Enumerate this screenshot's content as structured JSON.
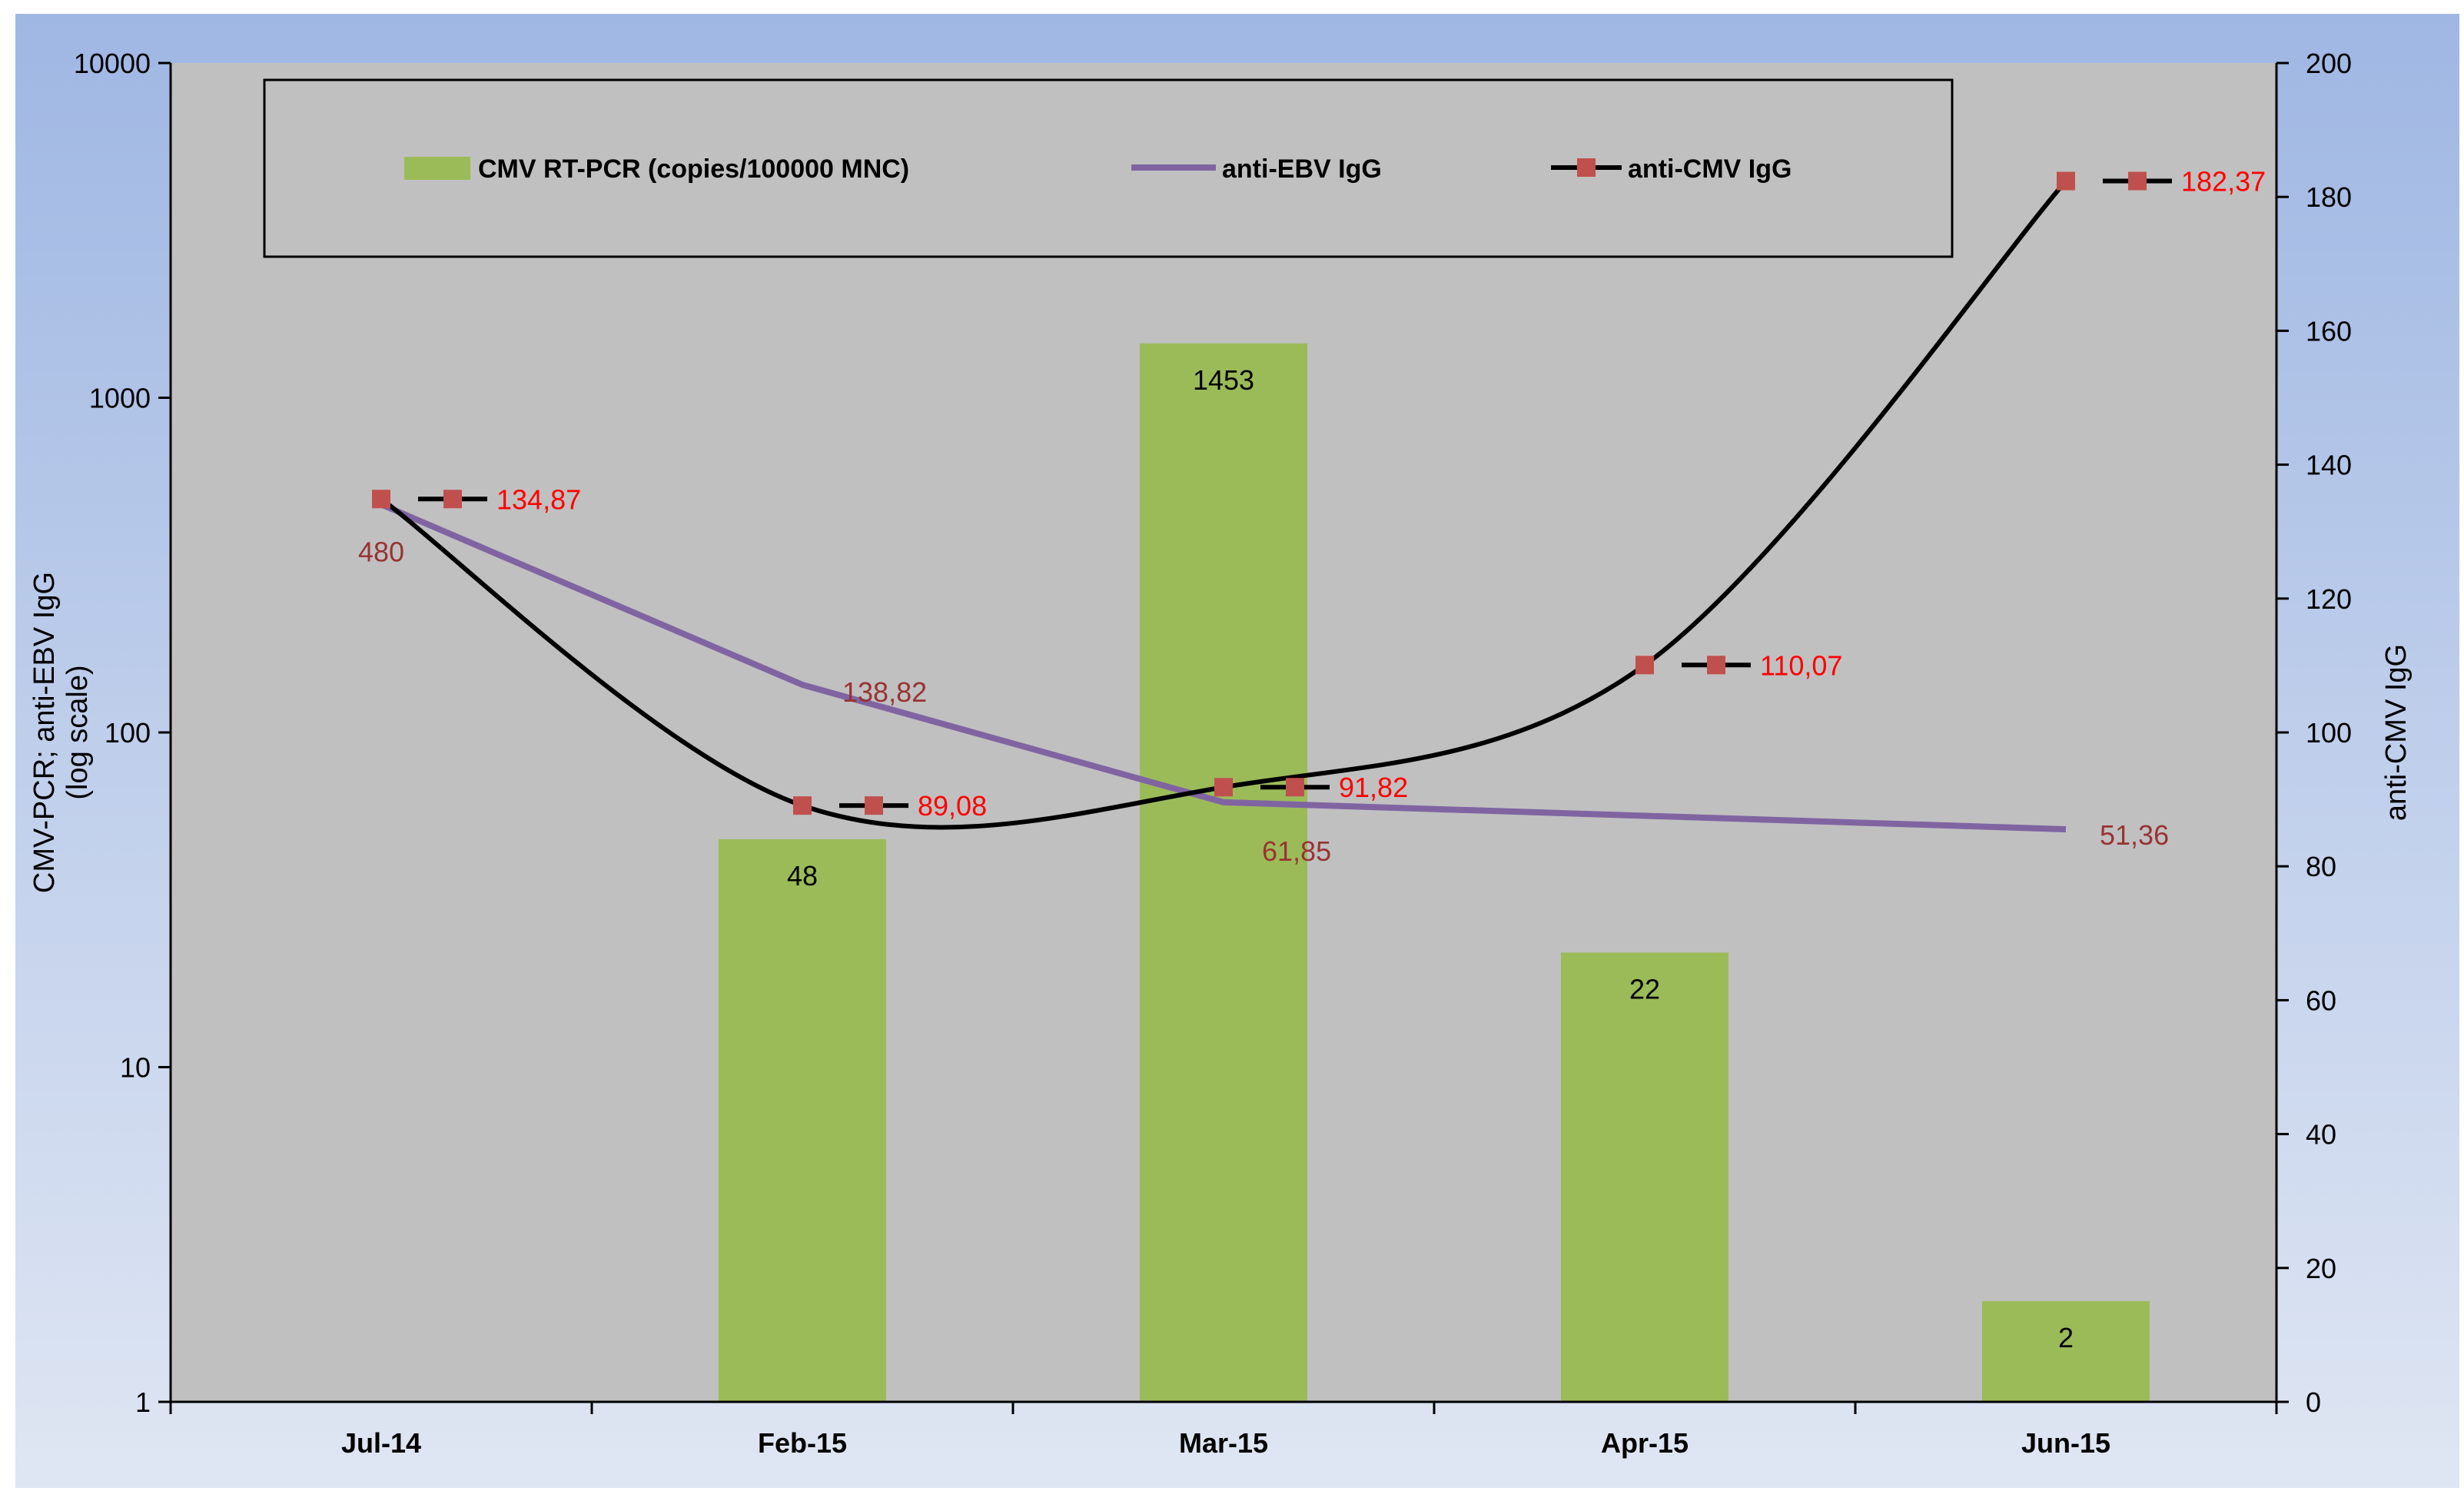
{
  "colors": {
    "frame_top": "#9fb7e3",
    "frame_bottom": "#dfe6f3",
    "plot_bg": "#c0c0c0",
    "bar": "#9bbb59",
    "ebv_line": "#8064a2",
    "cmv_line": "#000000",
    "cmv_marker": "#c0504d",
    "cmv_label": "#ff0000",
    "ebv_label": "#993333",
    "bar_label": "#000000"
  },
  "chart_data": {
    "type": "bar",
    "categories": [
      "Jul-14",
      "Feb-15",
      "Mar-15",
      "Apr-15",
      "Jun-15"
    ],
    "y_left": {
      "label_line1": "CMV-PCR;  anti-EBV IgG",
      "label_line2": "(log scale)",
      "scale": "log",
      "ylim": [
        1,
        10000
      ],
      "ticks": [
        1,
        10,
        100,
        1000,
        10000
      ],
      "tick_labels": [
        "1",
        "10",
        "100",
        "1000",
        "10000"
      ]
    },
    "y_right": {
      "label": "anti-CMV IgG",
      "scale": "linear",
      "ylim": [
        0,
        200
      ],
      "ticks": [
        0,
        20,
        40,
        60,
        80,
        100,
        120,
        140,
        160,
        180,
        200
      ],
      "tick_labels": [
        "0",
        "20",
        "40",
        "60",
        "80",
        "100",
        "120",
        "140",
        "160",
        "180",
        "200"
      ]
    },
    "legend": {
      "placement": "top",
      "entries": [
        "CMV RT-PCR (copies/100000  MNC)",
        "anti-EBV IgG",
        "anti-CMV IgG"
      ]
    },
    "series": [
      {
        "name": "CMV RT-PCR (copies/100000  MNC)",
        "kind": "bar",
        "axis": "left",
        "values": [
          null,
          48,
          1453,
          22,
          2
        ],
        "value_labels": [
          "",
          "48",
          "1453",
          "22",
          "2"
        ]
      },
      {
        "name": "anti-EBV IgG",
        "kind": "line",
        "axis": "left",
        "values": [
          480,
          138.82,
          61.85,
          null,
          51.36
        ],
        "value_labels": [
          "480",
          "138,82",
          "61,85",
          "",
          "51,36"
        ]
      },
      {
        "name": "anti-CMV IgG",
        "kind": "smooth-line-markers",
        "axis": "right",
        "values": [
          134.87,
          89.08,
          91.82,
          110.07,
          182.37
        ],
        "value_labels": [
          "134,87",
          "89,08",
          "91,82",
          "110,07",
          "182,37"
        ]
      }
    ]
  }
}
